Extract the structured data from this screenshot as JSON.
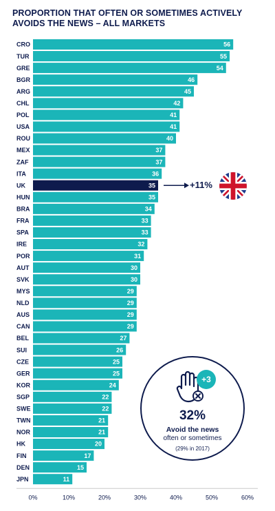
{
  "title": {
    "line1": "PROPORTION THAT OFTEN OR SOMETIMES ACTIVELY",
    "line2": "AVOIDS THE NEWS – ALL MARKETS"
  },
  "colors": {
    "bar": "#1bb5b8",
    "highlight_bar": "#0e1b4d",
    "text": "#0e1b4d"
  },
  "chart_data": {
    "type": "bar",
    "orientation": "horizontal",
    "categories": [
      "CRO",
      "TUR",
      "GRE",
      "BGR",
      "ARG",
      "CHL",
      "POL",
      "USA",
      "ROU",
      "MEX",
      "ZAF",
      "ITA",
      "UK",
      "HUN",
      "BRA",
      "FRA",
      "SPA",
      "IRE",
      "POR",
      "AUT",
      "SVK",
      "MYS",
      "NLD",
      "AUS",
      "CAN",
      "BEL",
      "SUI",
      "CZE",
      "GER",
      "KOR",
      "SGP",
      "SWE",
      "TWN",
      "NOR",
      "HK",
      "FIN",
      "DEN",
      "JPN"
    ],
    "values": [
      56,
      55,
      54,
      46,
      45,
      42,
      41,
      41,
      40,
      37,
      37,
      36,
      35,
      35,
      34,
      33,
      33,
      32,
      31,
      30,
      30,
      29,
      29,
      29,
      29,
      27,
      26,
      25,
      25,
      24,
      22,
      22,
      21,
      21,
      20,
      17,
      15,
      11
    ],
    "highlight": "UK",
    "xlim": [
      0,
      60
    ],
    "xticks": [
      "0%",
      "10%",
      "20%",
      "30%",
      "40%",
      "50%",
      "60%"
    ],
    "grid": false
  },
  "uk_annotation": {
    "change": "+11%",
    "flag_icon": "uk-flag-icon"
  },
  "callout": {
    "badge": "+3",
    "big": "32%",
    "line1": "Avoid the news",
    "line2": "often or sometimes",
    "line3": "(29% in 2017)",
    "icon": "hand-stop-icon"
  }
}
